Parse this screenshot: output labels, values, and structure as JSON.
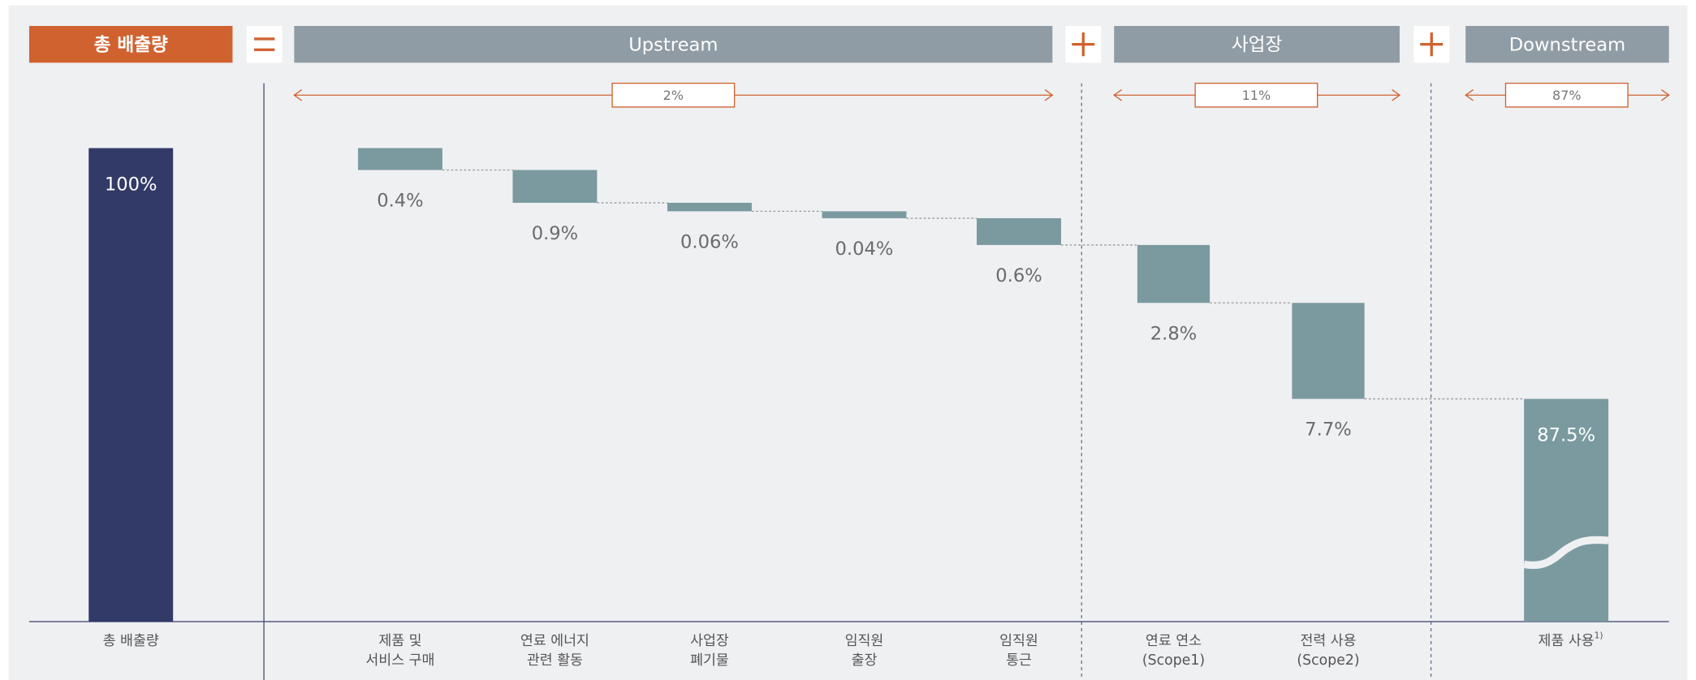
{
  "chart_data": {
    "type": "waterfall",
    "header_total": "총 배출량",
    "groups": [
      {
        "name": "Upstream",
        "share": 2,
        "share_label": "2%"
      },
      {
        "name": "사업장",
        "share": 11,
        "share_label": "11%"
      },
      {
        "name": "Downstream",
        "share": 87,
        "share_label": "87%"
      }
    ],
    "categories": [
      [
        "총 배출량"
      ],
      [
        "제품 및",
        "서비스 구매"
      ],
      [
        "연료 에너지",
        "관련 활동"
      ],
      [
        "사업장",
        "폐기물"
      ],
      [
        "임직원",
        "출장"
      ],
      [
        "임직원",
        "통근"
      ],
      [
        "연료 연소",
        "(Scope1)"
      ],
      [
        "전력 사용",
        "(Scope2)"
      ],
      [
        "제품 사용"
      ]
    ],
    "category_note": "1)",
    "values": [
      100,
      0.4,
      0.9,
      0.06,
      0.04,
      0.6,
      2.8,
      7.7,
      87.5
    ],
    "value_labels": [
      "100%",
      "0.4%",
      "0.9%",
      "0.06%",
      "0.04%",
      "0.6%",
      "2.8%",
      "7.7%",
      "87.5%"
    ],
    "total_color": "#323a68",
    "color": "#7a9aa0",
    "accent_color": "#d0622f",
    "header_color": "#8f9ca5"
  }
}
